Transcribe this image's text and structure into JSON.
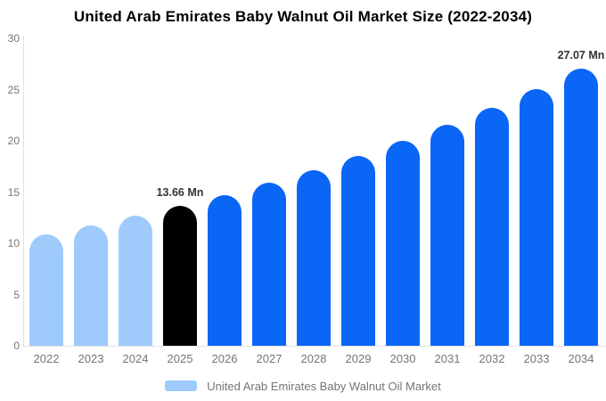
{
  "title": "United Arab Emirates Baby Walnut Oil Market Size (2022-2034)",
  "legend": {
    "label": "United Arab Emirates Baby Walnut Oil Market"
  },
  "colors": {
    "historical": "#9ECBFC",
    "highlight": "#000000",
    "forecast": "#0A66F5",
    "axis_line": "#e2e2e2",
    "tick_text": "#757575",
    "value_label_text": "#333333",
    "title_text": "#000000"
  },
  "chart_data": {
    "type": "bar",
    "title": "United Arab Emirates Baby Walnut Oil Market Size (2022-2034)",
    "xlabel": "",
    "ylabel": "",
    "unit": "Mn",
    "ylim": [
      0,
      30
    ],
    "yticks": [
      0,
      5,
      10,
      15,
      20,
      25,
      30
    ],
    "grid": false,
    "legend_position": "bottom",
    "categories": [
      "2022",
      "2023",
      "2024",
      "2025",
      "2026",
      "2027",
      "2028",
      "2029",
      "2030",
      "2031",
      "2032",
      "2033",
      "2034"
    ],
    "values": [
      10.87,
      11.73,
      12.66,
      13.66,
      14.74,
      15.9,
      17.16,
      18.51,
      19.98,
      21.55,
      23.26,
      25.09,
      27.07
    ],
    "bar_roles": [
      "historical",
      "historical",
      "historical",
      "highlight",
      "forecast",
      "forecast",
      "forecast",
      "forecast",
      "forecast",
      "forecast",
      "forecast",
      "forecast",
      "forecast"
    ],
    "annotations": [
      {
        "category": "2025",
        "text": "13.66 Mn"
      },
      {
        "category": "2034",
        "text": "27.07 Mn"
      }
    ]
  }
}
